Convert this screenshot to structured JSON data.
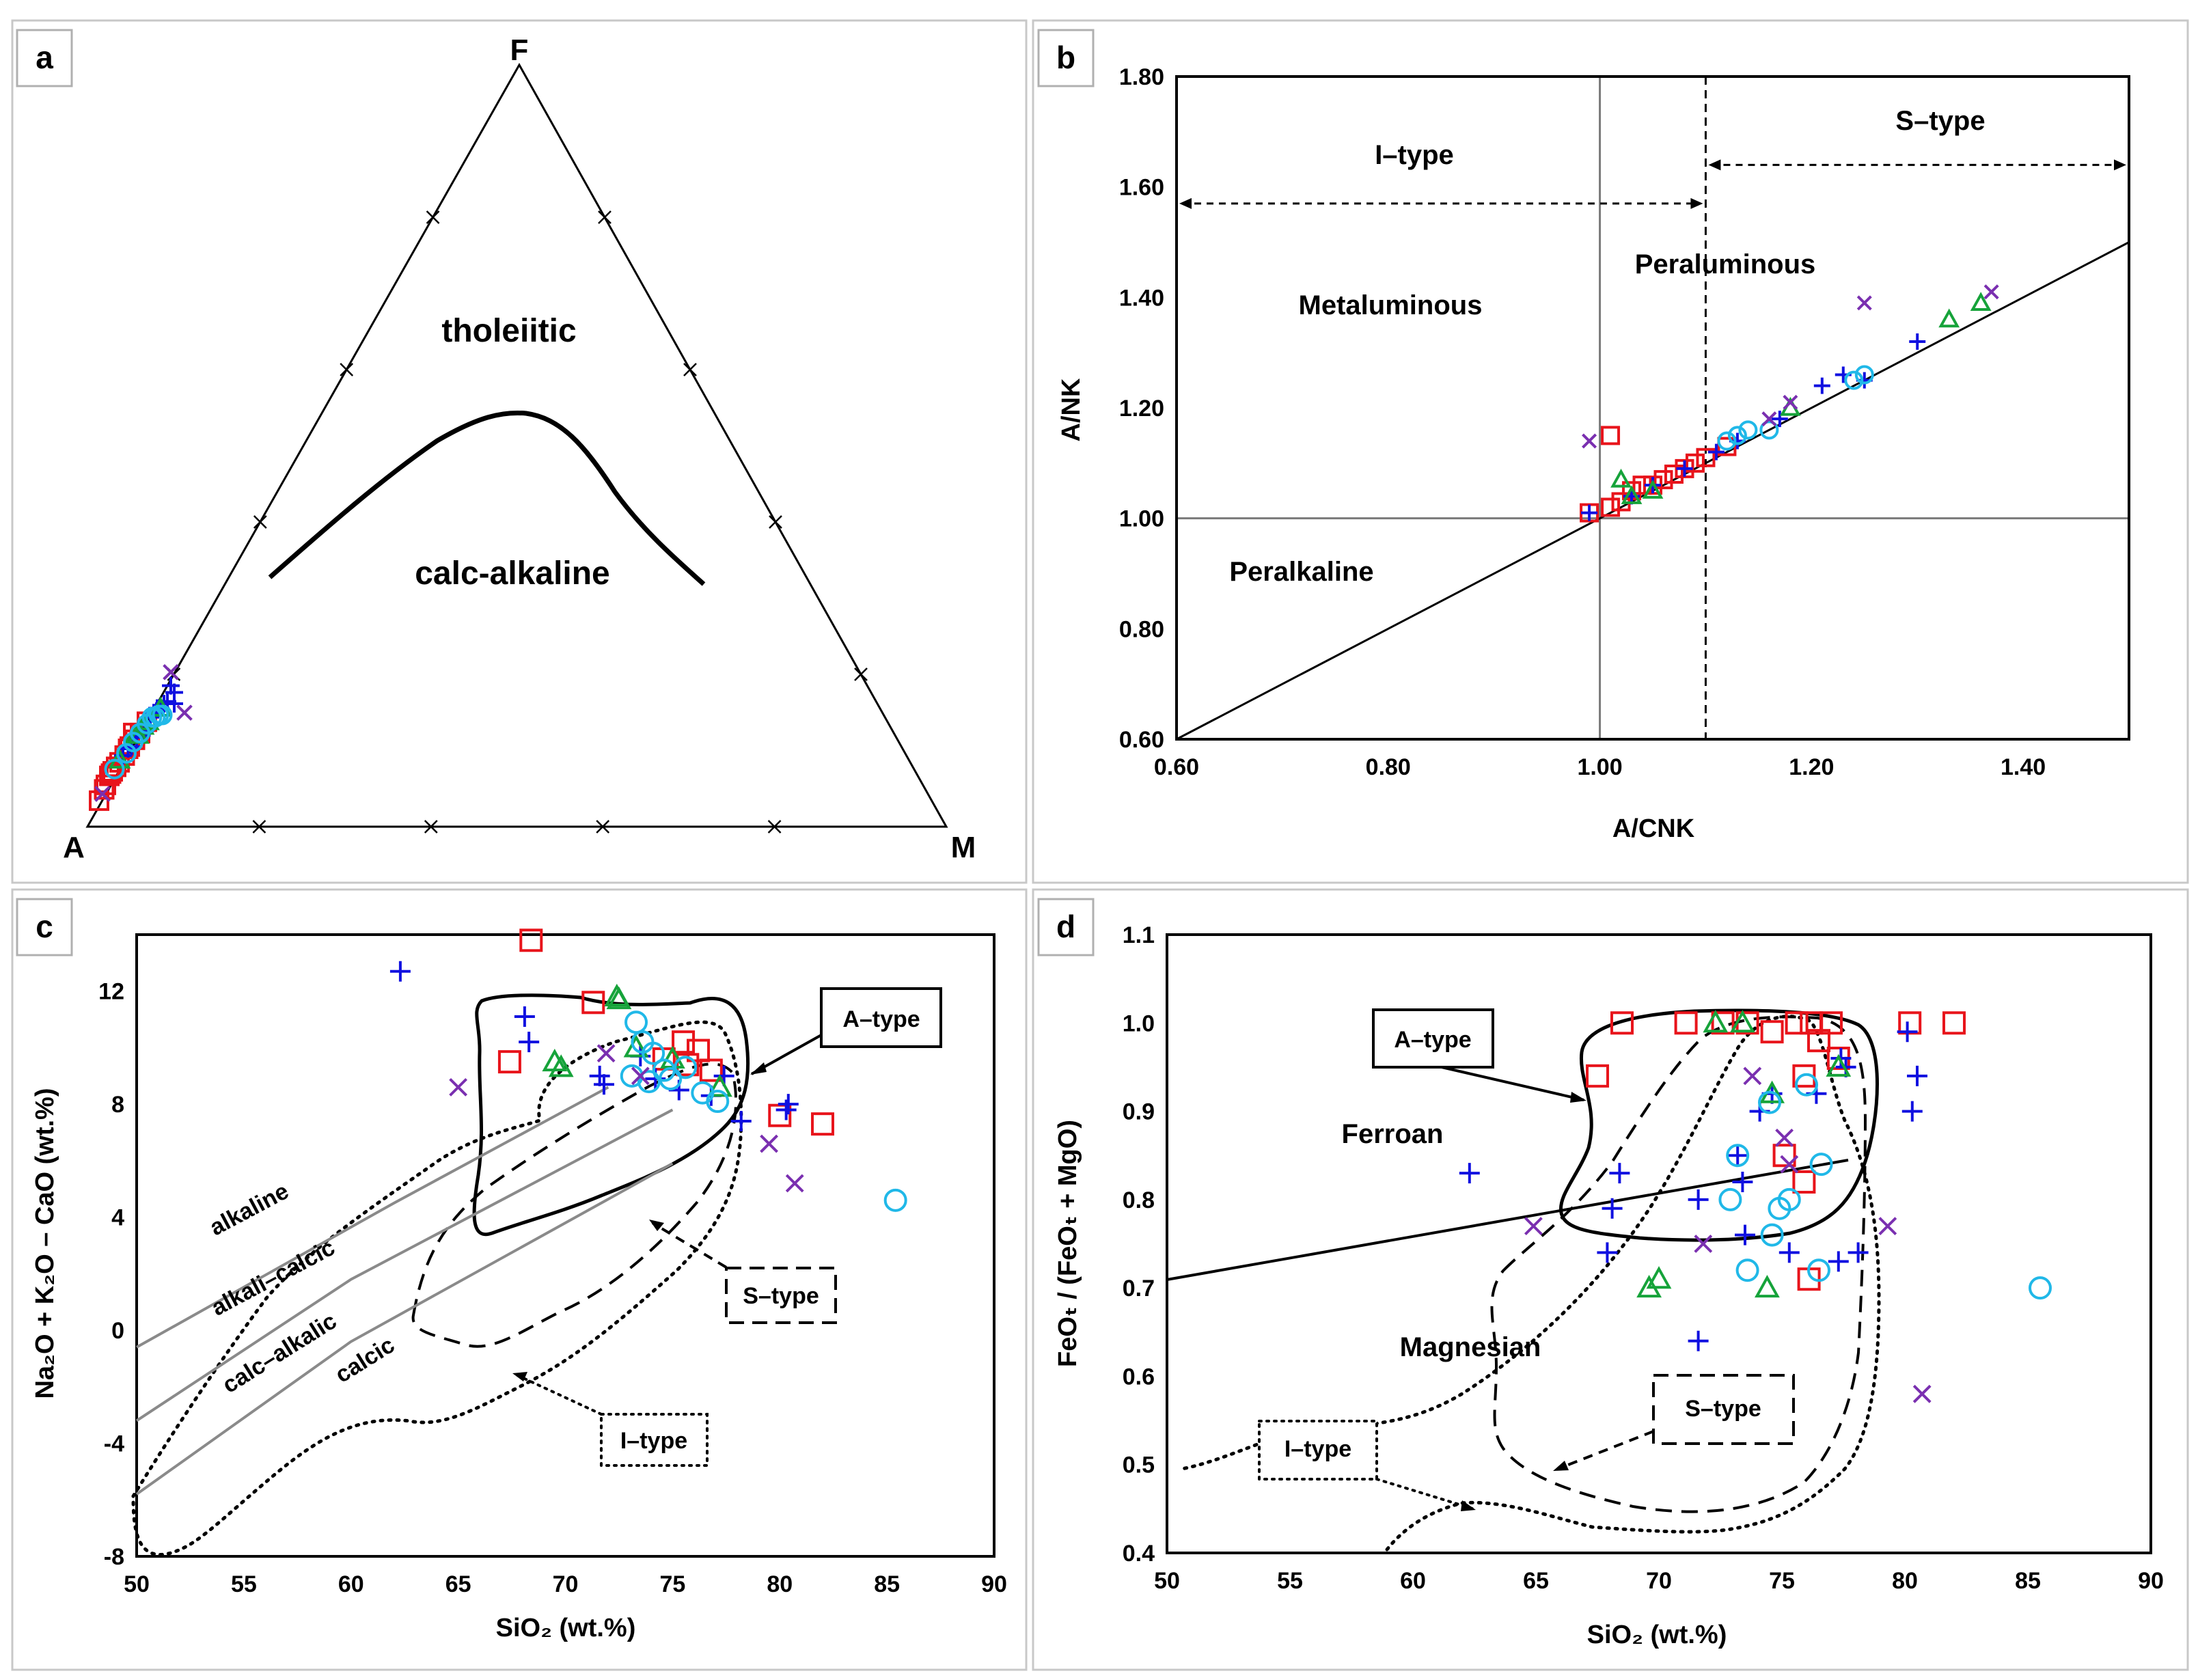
{
  "colors": {
    "series_a": "#e8141b",
    "series_b": "#1010e0",
    "series_c": "#16a33a",
    "series_d": "#20b8e8",
    "series_e": "#7a2fb0"
  },
  "chart_data": [
    {
      "id": "a",
      "type": "scatter",
      "subtype": "ternary AFM",
      "panel_label": "a",
      "vertices": {
        "top": "F",
        "left": "A",
        "right": "M"
      },
      "field_labels": [
        "tholeiitic",
        "calc-alkaline"
      ],
      "series": [
        {
          "name": "squares",
          "marker": "square",
          "points": [
            [
              0.06,
              0.93
            ],
            [
              0.1,
              0.86
            ],
            [
              0.14,
              0.8
            ],
            [
              0.12,
              0.82
            ],
            [
              0.16,
              0.78
            ],
            [
              0.09,
              0.88
            ],
            [
              0.13,
              0.81
            ],
            [
              0.18,
              0.76
            ],
            [
              0.21,
              0.73
            ],
            [
              0.24,
              0.69
            ],
            [
              0.27,
              0.66
            ],
            [
              0.3,
              0.63
            ],
            [
              0.34,
              0.58
            ],
            [
              0.26,
              0.63
            ],
            [
              0.23,
              0.7
            ]
          ]
        },
        {
          "name": "plus",
          "marker": "plus",
          "points": [
            [
              0.2,
              0.73
            ],
            [
              0.23,
              0.7
            ],
            [
              0.25,
              0.69
            ],
            [
              0.28,
              0.65
            ],
            [
              0.31,
              0.64
            ],
            [
              0.33,
              0.62
            ],
            [
              0.36,
              0.56
            ],
            [
              0.38,
              0.54
            ],
            [
              0.4,
              0.52
            ],
            [
              0.42,
              0.52
            ],
            [
              0.44,
              0.5
            ],
            [
              0.46,
              0.49
            ],
            [
              0.48,
              0.42
            ],
            [
              0.5,
              0.5
            ],
            [
              0.5,
              0.45
            ]
          ]
        },
        {
          "name": "triangles",
          "marker": "triangle",
          "points": [
            [
              0.18,
              0.75
            ],
            [
              0.27,
              0.64
            ],
            [
              0.29,
              0.64
            ],
            [
              0.32,
              0.6
            ],
            [
              0.35,
              0.58
            ],
            [
              0.42,
              0.52
            ]
          ]
        },
        {
          "name": "circles",
          "marker": "circle",
          "points": [
            [
              0.15,
              0.79
            ],
            [
              0.22,
              0.72
            ],
            [
              0.26,
              0.67
            ],
            [
              0.3,
              0.63
            ],
            [
              0.34,
              0.59
            ],
            [
              0.37,
              0.56
            ],
            [
              0.39,
              0.56
            ],
            [
              0.41,
              0.55
            ],
            [
              0.43,
              0.55
            ]
          ]
        },
        {
          "name": "crosses",
          "marker": "x",
          "points": [
            [
              0.08,
              0.9
            ],
            [
              0.48,
              0.36
            ],
            [
              0.56,
              0.54
            ]
          ]
        }
      ]
    },
    {
      "id": "b",
      "type": "scatter",
      "panel_label": "b",
      "xlabel": "A/CNK",
      "ylabel": "A/NK",
      "xlim": [
        0.6,
        1.5
      ],
      "ylim": [
        0.6,
        1.8
      ],
      "xticks": [
        "0.60",
        "0.80",
        "1.00",
        "1.20",
        "1.40"
      ],
      "yticks": [
        "0.60",
        "0.80",
        "1.00",
        "1.20",
        "1.40",
        "1.60",
        "1.80"
      ],
      "region_labels": [
        "I–type",
        "S–type",
        "Metaluminous",
        "Peraluminous",
        "Peralkaline"
      ],
      "series": [
        {
          "name": "squares",
          "marker": "square",
          "points": [
            [
              0.99,
              1.01
            ],
            [
              1.01,
              1.02
            ],
            [
              1.02,
              1.03
            ],
            [
              1.03,
              1.05
            ],
            [
              1.04,
              1.06
            ],
            [
              1.05,
              1.06
            ],
            [
              1.06,
              1.07
            ],
            [
              1.07,
              1.08
            ],
            [
              1.08,
              1.09
            ],
            [
              1.09,
              1.1
            ],
            [
              1.1,
              1.11
            ],
            [
              1.12,
              1.13
            ],
            [
              1.01,
              1.15
            ]
          ]
        },
        {
          "name": "plus",
          "marker": "plus",
          "points": [
            [
              0.99,
              1.01
            ],
            [
              1.03,
              1.04
            ],
            [
              1.05,
              1.06
            ],
            [
              1.08,
              1.09
            ],
            [
              1.11,
              1.12
            ],
            [
              1.13,
              1.14
            ],
            [
              1.17,
              1.18
            ],
            [
              1.21,
              1.24
            ],
            [
              1.23,
              1.26
            ],
            [
              1.25,
              1.25
            ],
            [
              1.3,
              1.32
            ]
          ]
        },
        {
          "name": "triangles",
          "marker": "triangle",
          "points": [
            [
              1.02,
              1.07
            ],
            [
              1.03,
              1.04
            ],
            [
              1.05,
              1.05
            ],
            [
              1.18,
              1.2
            ],
            [
              1.33,
              1.36
            ],
            [
              1.36,
              1.39
            ]
          ]
        },
        {
          "name": "circles",
          "marker": "circle",
          "points": [
            [
              1.12,
              1.14
            ],
            [
              1.13,
              1.15
            ],
            [
              1.14,
              1.16
            ],
            [
              1.16,
              1.16
            ],
            [
              1.24,
              1.25
            ],
            [
              1.25,
              1.26
            ]
          ]
        },
        {
          "name": "crosses",
          "marker": "x",
          "points": [
            [
              0.99,
              1.14
            ],
            [
              1.16,
              1.18
            ],
            [
              1.18,
              1.21
            ],
            [
              1.25,
              1.39
            ],
            [
              1.37,
              1.41
            ]
          ]
        }
      ]
    },
    {
      "id": "c",
      "type": "scatter",
      "panel_label": "c",
      "xlabel": "SiO₂ (wt.%)",
      "ylabel": "Na₂O + K₂O – CaO (wt.%)",
      "xlim": [
        50,
        90
      ],
      "ylim": [
        -8,
        14
      ],
      "xticks": [
        "50",
        "55",
        "60",
        "65",
        "70",
        "75",
        "80",
        "85",
        "90"
      ],
      "yticks": [
        "-8",
        "-4",
        "0",
        "4",
        "8",
        "12"
      ],
      "series_labels": [
        "alkaline",
        "alkali–calcic",
        "calc–alkalic",
        "calcic"
      ],
      "region_labels": [
        "A–type",
        "S–type",
        "I–type"
      ],
      "series": [
        {
          "name": "squares",
          "marker": "square",
          "points": [
            [
              68.4,
              13.8
            ],
            [
              71.3,
              11.6
            ],
            [
              67.4,
              9.5
            ],
            [
              75.5,
              10.2
            ],
            [
              76.2,
              9.9
            ],
            [
              75.7,
              9.4
            ],
            [
              76.8,
              9.2
            ],
            [
              74.6,
              9.6
            ],
            [
              80,
              7.6
            ],
            [
              82,
              7.3
            ]
          ]
        },
        {
          "name": "plus",
          "marker": "plus",
          "points": [
            [
              62.3,
              12.7
            ],
            [
              68.1,
              11.1
            ],
            [
              68.3,
              10.2
            ],
            [
              71.6,
              9.0
            ],
            [
              71.8,
              8.7
            ],
            [
              73.5,
              9.7
            ],
            [
              74.2,
              8.9
            ],
            [
              75.3,
              8.5
            ],
            [
              76.8,
              8.3
            ],
            [
              78.2,
              7.4
            ],
            [
              80.3,
              7.8
            ],
            [
              80.4,
              8.0
            ],
            [
              77.4,
              9.0
            ]
          ]
        },
        {
          "name": "triangles",
          "marker": "triangle",
          "points": [
            [
              69.5,
              9.5
            ],
            [
              69.8,
              9.3
            ],
            [
              72.4,
              11.8
            ],
            [
              72.5,
              11.7
            ],
            [
              73.3,
              10.0
            ],
            [
              75,
              9.6
            ],
            [
              77.2,
              8.6
            ]
          ]
        },
        {
          "name": "circles",
          "marker": "circle",
          "points": [
            [
              73.3,
              10.9
            ],
            [
              73.6,
              10.2
            ],
            [
              73.1,
              9.0
            ],
            [
              73.9,
              8.8
            ],
            [
              74.1,
              9.8
            ],
            [
              74.6,
              9.2
            ],
            [
              74.9,
              8.9
            ],
            [
              75.6,
              9.3
            ],
            [
              76.4,
              8.4
            ],
            [
              77.1,
              8.1
            ],
            [
              85.4,
              4.6
            ]
          ]
        },
        {
          "name": "crosses",
          "marker": "x",
          "points": [
            [
              65,
              8.6
            ],
            [
              71.9,
              9.8
            ],
            [
              79.5,
              6.6
            ],
            [
              80.7,
              5.2
            ],
            [
              73.5,
              9.0
            ]
          ]
        }
      ]
    },
    {
      "id": "d",
      "type": "scatter",
      "panel_label": "d",
      "xlabel": "SiO₂ (wt.%)",
      "ylabel": "FeOₜ / (FeOₜ + MgO)",
      "xlim": [
        50,
        90
      ],
      "ylim": [
        0.4,
        1.1
      ],
      "xticks": [
        "50",
        "55",
        "60",
        "65",
        "70",
        "75",
        "80",
        "85",
        "90"
      ],
      "yticks": [
        "0.4",
        "0.5",
        "0.6",
        "0.7",
        "0.8",
        "0.9",
        "1.0",
        "1.1"
      ],
      "region_labels": [
        "A–type",
        "Ferroan",
        "Magnesian",
        "S–type",
        "I–type"
      ],
      "series": [
        {
          "name": "squares",
          "marker": "square",
          "points": [
            [
              67.5,
              0.94
            ],
            [
              68.5,
              1.0
            ],
            [
              71.1,
              1.0
            ],
            [
              72.6,
              1.0
            ],
            [
              73.6,
              1.0
            ],
            [
              74.6,
              0.99
            ],
            [
              75.6,
              1.0
            ],
            [
              76.2,
              1.0
            ],
            [
              77,
              1.0
            ],
            [
              76.5,
              0.98
            ],
            [
              77.3,
              0.96
            ],
            [
              75.9,
              0.94
            ],
            [
              75.1,
              0.85
            ],
            [
              75.9,
              0.82
            ],
            [
              76.1,
              0.71
            ],
            [
              80.2,
              1.0
            ],
            [
              82,
              1.0
            ]
          ]
        },
        {
          "name": "plus",
          "marker": "plus",
          "points": [
            [
              62.3,
              0.83
            ],
            [
              68.1,
              0.79
            ],
            [
              68.4,
              0.83
            ],
            [
              67.9,
              0.74
            ],
            [
              71.6,
              0.8
            ],
            [
              71.6,
              0.64
            ],
            [
              73.2,
              0.85
            ],
            [
              73.4,
              0.82
            ],
            [
              73.5,
              0.76
            ],
            [
              74.1,
              0.9
            ],
            [
              74.6,
              0.92
            ],
            [
              75.3,
              0.74
            ],
            [
              76.4,
              0.92
            ],
            [
              77.4,
              0.96
            ],
            [
              77.6,
              0.95
            ],
            [
              78.1,
              0.74
            ],
            [
              77.3,
              0.73
            ],
            [
              80.1,
              0.99
            ],
            [
              80.5,
              0.94
            ],
            [
              80.3,
              0.9
            ]
          ]
        },
        {
          "name": "triangles",
          "marker": "triangle",
          "points": [
            [
              69.6,
              0.7
            ],
            [
              70,
              0.71
            ],
            [
              72.3,
              1.0
            ],
            [
              73.4,
              1.0
            ],
            [
              74.4,
              0.7
            ],
            [
              74.6,
              0.92
            ],
            [
              77.3,
              0.95
            ]
          ]
        },
        {
          "name": "circles",
          "marker": "circle",
          "points": [
            [
              72.9,
              0.8
            ],
            [
              73.2,
              0.85
            ],
            [
              73.6,
              0.72
            ],
            [
              74.5,
              0.91
            ],
            [
              74.6,
              0.76
            ],
            [
              74.9,
              0.79
            ],
            [
              75.3,
              0.8
            ],
            [
              76,
              0.93
            ],
            [
              76.5,
              0.72
            ],
            [
              76.6,
              0.84
            ],
            [
              85.5,
              0.7
            ]
          ]
        },
        {
          "name": "crosses",
          "marker": "x",
          "points": [
            [
              64.9,
              0.77
            ],
            [
              71.8,
              0.75
            ],
            [
              73.8,
              0.94
            ],
            [
              75.1,
              0.87
            ],
            [
              75.3,
              0.84
            ],
            [
              79.3,
              0.77
            ],
            [
              80.7,
              0.58
            ]
          ]
        }
      ]
    }
  ]
}
